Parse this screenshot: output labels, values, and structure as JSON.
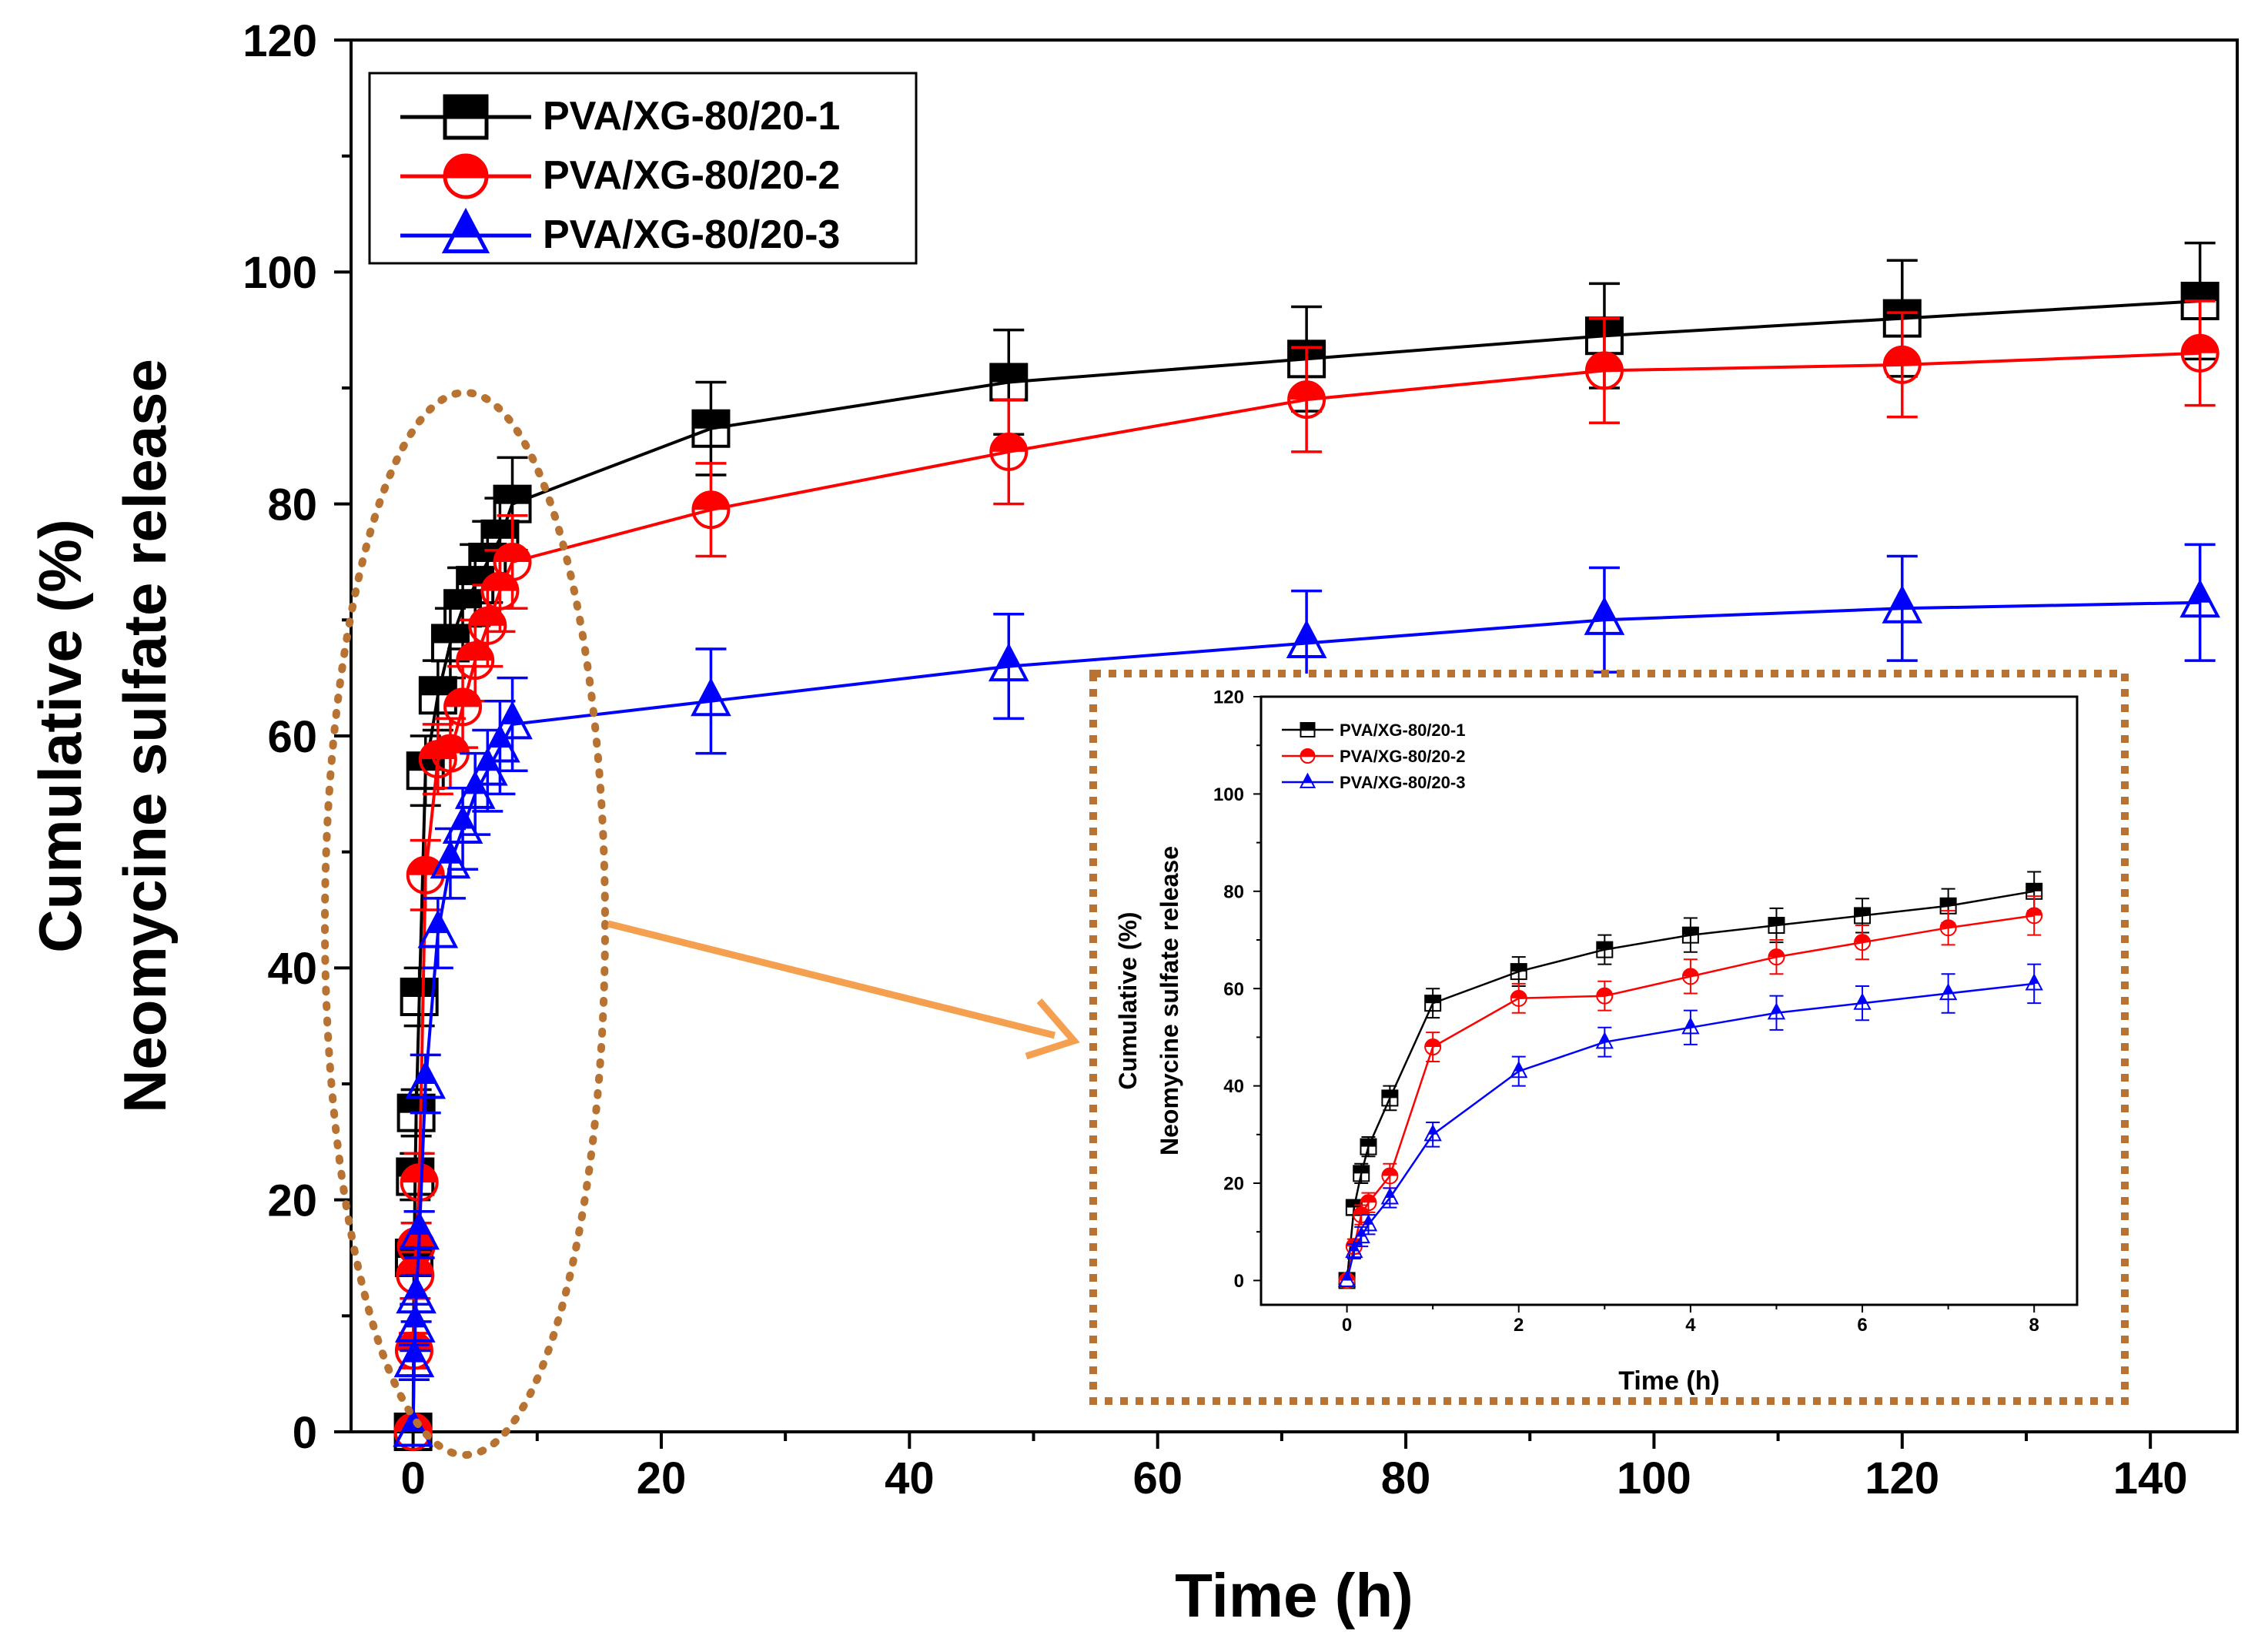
{
  "chart_data": [
    {
      "name": "main",
      "type": "line",
      "xlabel": "Time (h)",
      "ylabel_line1": "Cumulative (%)",
      "ylabel_line2": "Neomycine sulfate release",
      "xlim": [
        -5,
        147
      ],
      "ylim": [
        0,
        120
      ],
      "xticks": [
        0,
        20,
        40,
        60,
        80,
        100,
        120,
        140
      ],
      "yticks": [
        0,
        20,
        40,
        60,
        80,
        100,
        120
      ],
      "legend_position": "top-left",
      "series": [
        {
          "name": "PVA/XG-80/20-1",
          "color": "#000000",
          "marker": "square",
          "x": [
            0,
            0.083,
            0.167,
            0.25,
            0.5,
            1,
            2,
            3,
            4,
            5,
            6,
            7,
            8,
            24,
            48,
            72,
            96,
            120,
            144
          ],
          "y": [
            0,
            15,
            22,
            27.5,
            37.5,
            57,
            63.5,
            68,
            71,
            73,
            75,
            77,
            80,
            86.5,
            90.5,
            92.5,
            94.5,
            96,
            97.5
          ],
          "err": [
            0,
            1.5,
            2,
            2,
            2.5,
            3,
            3,
            3,
            3.5,
            3.5,
            3.5,
            3.5,
            4,
            4,
            4.5,
            4.5,
            4.5,
            5,
            5
          ]
        },
        {
          "name": "PVA/XG-80/20-2",
          "color": "#ff0000",
          "marker": "circle",
          "x": [
            0,
            0.083,
            0.167,
            0.25,
            0.5,
            1,
            2,
            3,
            4,
            5,
            6,
            7,
            8,
            24,
            48,
            72,
            96,
            120,
            144
          ],
          "y": [
            0,
            7,
            13.5,
            16,
            21.5,
            48,
            58,
            58.5,
            62.5,
            66.5,
            69.5,
            72.5,
            75,
            79.5,
            84.5,
            89,
            91.5,
            92,
            93
          ],
          "err": [
            0,
            1.5,
            2,
            2,
            2.5,
            3,
            3,
            3,
            3.5,
            3.5,
            3.5,
            3.5,
            4,
            4,
            4.5,
            4.5,
            4.5,
            4.5,
            4.5
          ]
        },
        {
          "name": "PVA/XG-80/20-3",
          "color": "#0000ff",
          "marker": "triangle",
          "x": [
            0,
            0.083,
            0.167,
            0.25,
            0.5,
            1,
            2,
            3,
            4,
            5,
            6,
            7,
            8,
            24,
            48,
            72,
            96,
            120,
            144
          ],
          "y": [
            0,
            6,
            9,
            11.5,
            17,
            30,
            43,
            49,
            52,
            55,
            57,
            59,
            61,
            63,
            66,
            68,
            70,
            71,
            71.5
          ],
          "err": [
            0,
            1.5,
            2,
            2,
            2,
            2.5,
            3,
            3,
            3.5,
            3.5,
            3.5,
            4,
            4,
            4.5,
            4.5,
            4.5,
            4.5,
            4.5,
            5
          ]
        }
      ]
    },
    {
      "name": "inset",
      "type": "line",
      "xlabel": "Time (h)",
      "ylabel_line1": "Cumulative (%)",
      "ylabel_line2": "Neomycine sulfate release",
      "xlim": [
        -1,
        8.5
      ],
      "ylim": [
        -5,
        120
      ],
      "xticks": [
        0,
        2,
        4,
        6,
        8
      ],
      "yticks": [
        0,
        20,
        40,
        60,
        80,
        100,
        120
      ],
      "legend_position": "top-left",
      "series_source": "first 13 points (0–8 h) of each main series"
    }
  ],
  "zoom_annotation": {
    "ellipse_color": "#b87333",
    "box_color": "#b87333",
    "arrow_color": "#f5a050"
  }
}
